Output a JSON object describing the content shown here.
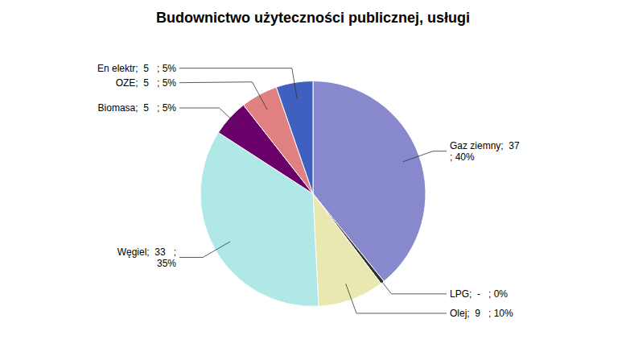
{
  "chart_data": {
    "type": "pie",
    "title": "Budownictwo użyteczności publicznej, usługi",
    "categories": [
      "Gaz ziemny;  37\n; 40%",
      "LPG;  -   ; 0%",
      "Olej;  9   ; 10%",
      "Węgiel;  33   ;\n35%",
      "Biomasa;  5   ; 5%",
      "OZE;  5   ; 5%",
      "En elektr;  5   ; 5%"
    ],
    "values": [
      37,
      0.5,
      9,
      33,
      5,
      5,
      5
    ],
    "colors": [
      "#8888cc",
      "#303030",
      "#e8e8b0",
      "#b0e8e8",
      "#6b006b",
      "#e08080",
      "#4060c0"
    ]
  }
}
